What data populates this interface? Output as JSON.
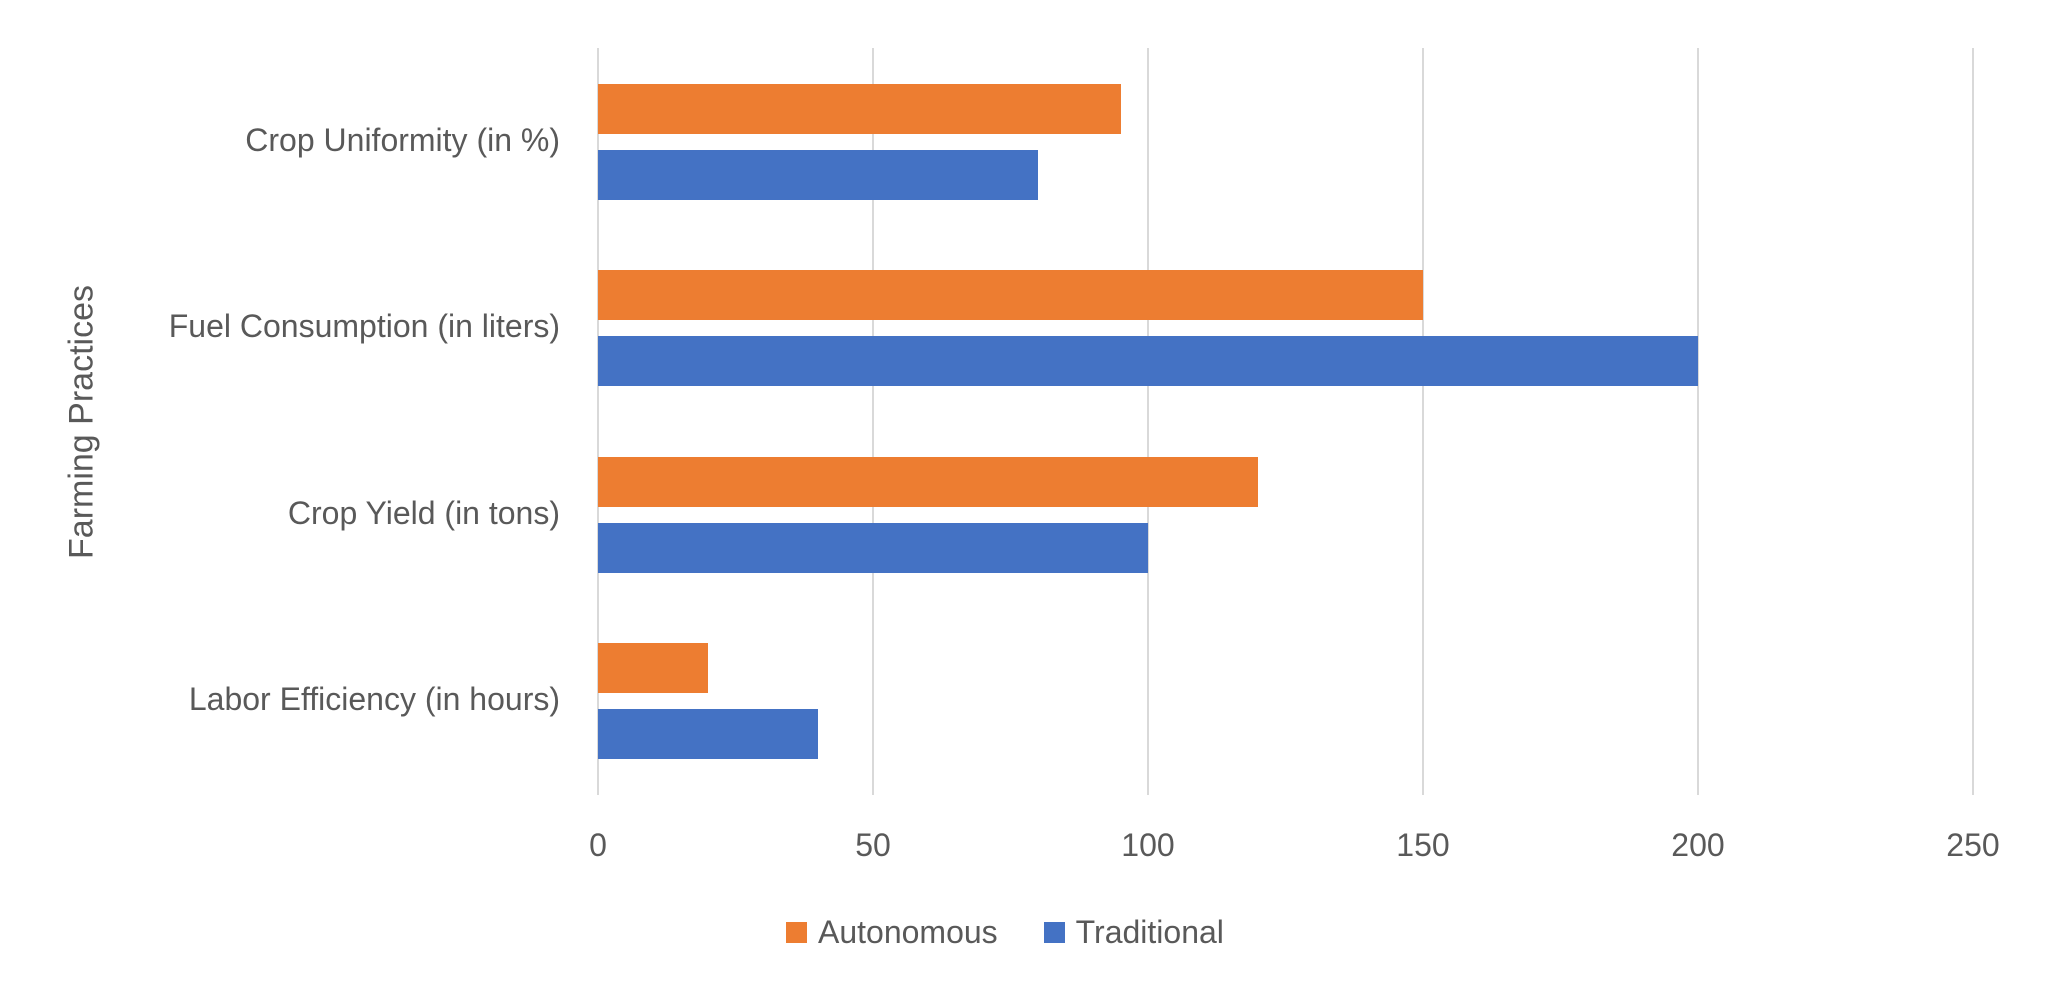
{
  "chart_data": {
    "type": "bar",
    "orientation": "horizontal",
    "title": "",
    "xlabel": "",
    "ylabel": "Farming Practices",
    "categories": [
      "Crop Uniformity (in %)",
      "Fuel Consumption (in liters)",
      "Crop Yield (in tons)",
      "Labor Efficiency (in hours)"
    ],
    "series": [
      {
        "name": "Autonomous",
        "color": "#ED7D31",
        "values": [
          95,
          150,
          120,
          20
        ]
      },
      {
        "name": "Traditional",
        "color": "#4472C4",
        "values": [
          80,
          200,
          100,
          40
        ]
      }
    ],
    "xlim": [
      0,
      250
    ],
    "x_ticks": [
      0,
      50,
      100,
      150,
      200,
      250
    ],
    "grid": true,
    "legend_position": "bottom"
  },
  "axis": {
    "y_title": "Farming Practices",
    "tick_labels": [
      "0",
      "50",
      "100",
      "150",
      "200",
      "250"
    ]
  },
  "legend": {
    "items": [
      {
        "label": "Autonomous",
        "color": "#ED7D31"
      },
      {
        "label": "Traditional",
        "color": "#4472C4"
      }
    ]
  },
  "colors": {
    "autonomous": "#ED7D31",
    "traditional": "#4472C4",
    "gridline": "#D9D9D9",
    "text": "#595959"
  }
}
